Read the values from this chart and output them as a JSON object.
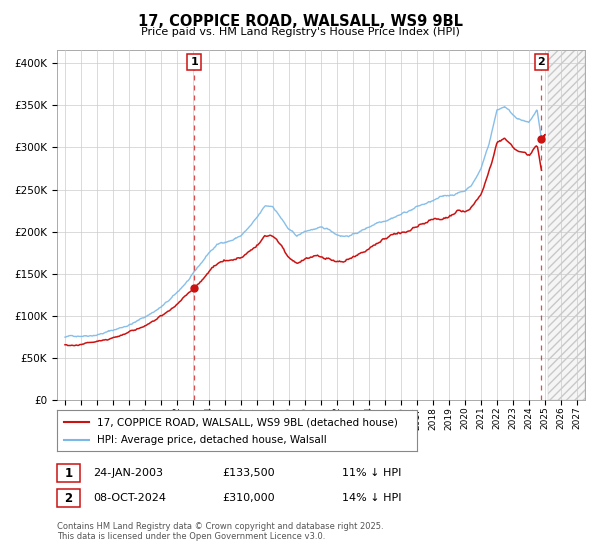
{
  "title": "17, COPPICE ROAD, WALSALL, WS9 9BL",
  "subtitle": "Price paid vs. HM Land Registry's House Price Index (HPI)",
  "ylabel_ticks": [
    "£0",
    "£50K",
    "£100K",
    "£150K",
    "£200K",
    "£250K",
    "£300K",
    "£350K",
    "£400K"
  ],
  "ytick_values": [
    0,
    50000,
    100000,
    150000,
    200000,
    250000,
    300000,
    350000,
    400000
  ],
  "ylim": [
    0,
    415000
  ],
  "xlim_start": 1994.5,
  "xlim_end": 2027.5,
  "hpi_color": "#7ab8e8",
  "price_color": "#cc1111",
  "sale1_x": 2003.07,
  "sale1_price": 133500,
  "sale2_x": 2024.78,
  "sale2_price": 310000,
  "hatch_start": 2025.2,
  "legend_label_red": "17, COPPICE ROAD, WALSALL, WS9 9BL (detached house)",
  "legend_label_blue": "HPI: Average price, detached house, Walsall",
  "footer": "Contains HM Land Registry data © Crown copyright and database right 2025.\nThis data is licensed under the Open Government Licence v3.0.",
  "bg_color": "#ffffff",
  "grid_color": "#cccccc"
}
